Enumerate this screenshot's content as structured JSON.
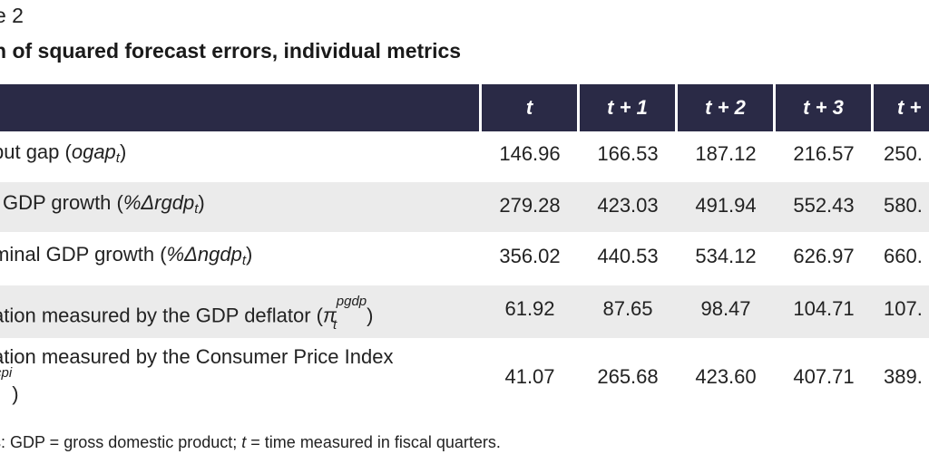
{
  "table_label": "e 2",
  "table_title": "n of squared forecast errors, individual metrics",
  "columns": [
    "t",
    "t + 1",
    "t + 2",
    "t + 3",
    "t +"
  ],
  "rows": [
    {
      "label_pre": "put gap (",
      "label_var": "ogap",
      "label_sub": "t",
      "label_post": ")",
      "values": [
        "146.96",
        "166.53",
        "187.12",
        "216.57",
        "250."
      ]
    },
    {
      "label_pre": "l GDP growth (",
      "label_var": "%Δrgdp",
      "label_sub": "t",
      "label_post": ")",
      "values": [
        "279.28",
        "423.03",
        "491.94",
        "552.43",
        "580."
      ]
    },
    {
      "label_pre": "minal GDP growth (",
      "label_var": "%Δngdp",
      "label_sub": "t",
      "label_post": ")",
      "values": [
        "356.02",
        "440.53",
        "534.12",
        "626.97",
        "660."
      ]
    },
    {
      "label_pre": "ation measured by the GDP deflator (",
      "label_var": "π",
      "label_sup": "pgdp",
      "label_sub": "t",
      "label_post": ")",
      "values": [
        "61.92",
        "87.65",
        "98.47",
        "104.71",
        "107."
      ]
    },
    {
      "label_pre": "ation measured by the Consumer Price Index",
      "label_line2_sup": "cpi",
      "label_line2_post": ")",
      "values": [
        "41.07",
        "265.68",
        "423.60",
        "407.71",
        "389."
      ]
    }
  ],
  "note": {
    "pre": "s: GDP = gross domestic product; ",
    "var": "t",
    "post": " = time measured in fiscal quarters."
  },
  "colors": {
    "header_bg": "#2a2a46",
    "shaded_row": "#ebebeb"
  }
}
